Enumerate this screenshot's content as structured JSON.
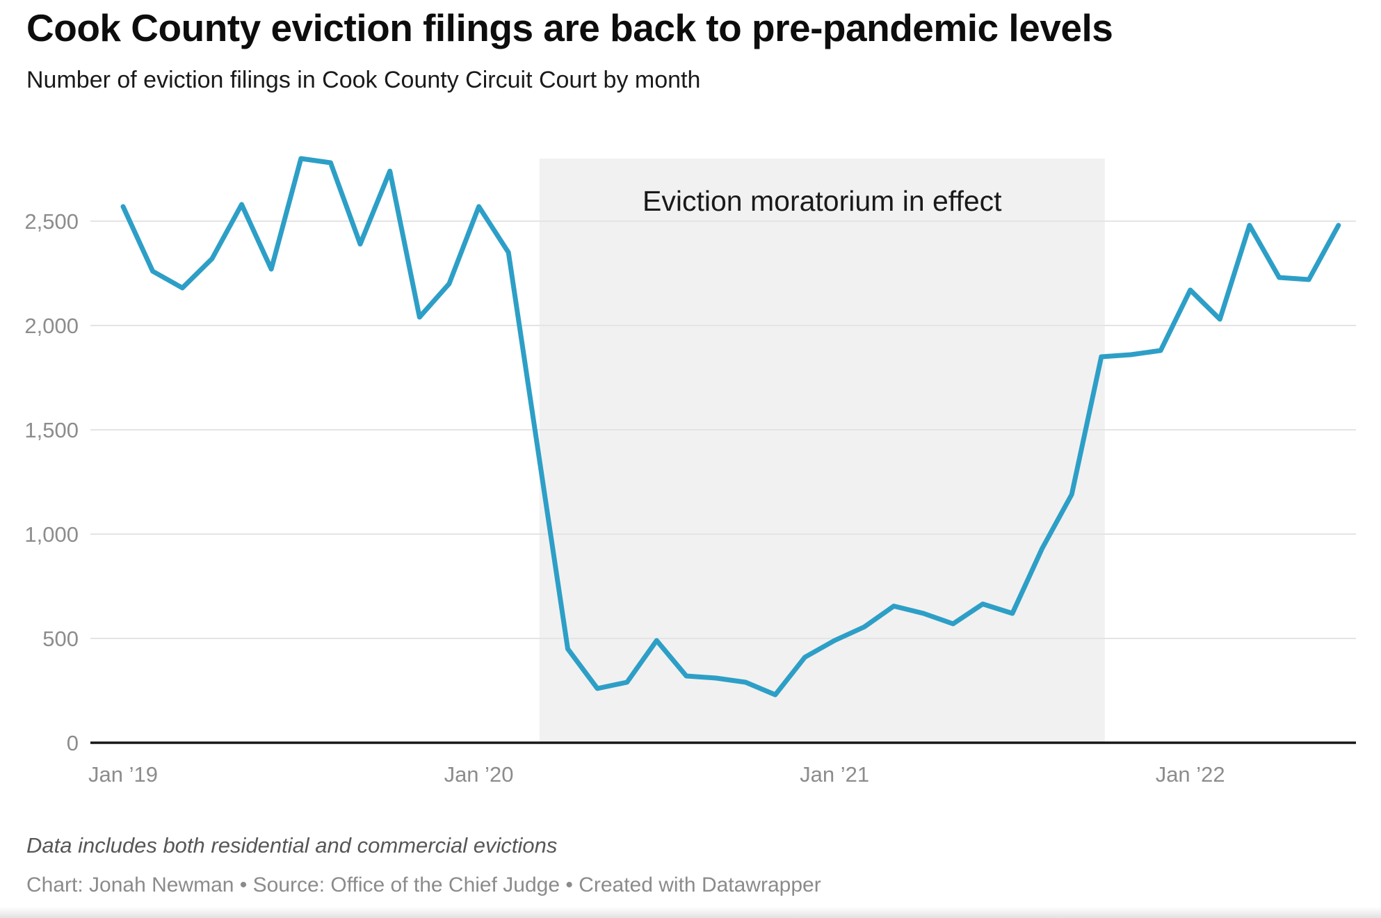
{
  "header": {
    "title": "Cook County eviction filings are back to pre-pandemic levels",
    "subtitle": "Number of eviction filings in Cook County Circuit Court by month"
  },
  "chart_data": {
    "type": "line",
    "title": "Cook County eviction filings are back to pre-pandemic levels",
    "subtitle": "Number of eviction filings in Cook County Circuit Court by month",
    "series_name": "Eviction filings per month",
    "x": [
      "Jan 2019",
      "Feb 2019",
      "Mar 2019",
      "Apr 2019",
      "May 2019",
      "Jun 2019",
      "Jul 2019",
      "Aug 2019",
      "Sep 2019",
      "Oct 2019",
      "Nov 2019",
      "Dec 2019",
      "Jan 2020",
      "Feb 2020",
      "Mar 2020",
      "Apr 2020",
      "May 2020",
      "Jun 2020",
      "Jul 2020",
      "Aug 2020",
      "Sep 2020",
      "Oct 2020",
      "Nov 2020",
      "Dec 2020",
      "Jan 2021",
      "Feb 2021",
      "Mar 2021",
      "Apr 2021",
      "May 2021",
      "Jun 2021",
      "Jul 2021",
      "Aug 2021",
      "Sep 2021",
      "Oct 2021",
      "Nov 2021",
      "Dec 2021",
      "Jan 2022",
      "Feb 2022",
      "Mar 2022",
      "Apr 2022",
      "May 2022",
      "Jun 2022"
    ],
    "values": [
      2570,
      2260,
      2180,
      2320,
      2580,
      2270,
      2800,
      2780,
      2390,
      2740,
      2040,
      2200,
      2570,
      2350,
      1400,
      450,
      260,
      290,
      490,
      320,
      310,
      290,
      230,
      410,
      490,
      555,
      655,
      620,
      570,
      665,
      620,
      930,
      1190,
      1850,
      1860,
      1880,
      2170,
      2030,
      2480,
      2230,
      2220,
      2480
    ],
    "ylim": [
      0,
      2900
    ],
    "yticks": [
      0,
      500,
      1000,
      1500,
      2000,
      2500
    ],
    "ytick_labels": [
      "0",
      "500",
      "1,000",
      "1,500",
      "2,000",
      "2,500"
    ],
    "xtick_indices": [
      0,
      12,
      24,
      36
    ],
    "xtick_labels": [
      "Jan ’19",
      "Jan ’20",
      "Jan ’21",
      "Jan ’22"
    ],
    "grid": "horizontal-only",
    "legend": "none",
    "band": {
      "start": "Mar 2020",
      "end": "Oct 2021",
      "color": "#f1f1f1"
    },
    "annotation": {
      "text": "Eviction moratorium in effect"
    },
    "line_color": "#2d9fc7",
    "axis_color": "#161616",
    "gridline_color": "#e4e4e4",
    "tick_label_color": "#8c8c8c"
  },
  "footer": {
    "note": "Data includes both residential and commercial evictions",
    "byline": "Chart: Jonah Newman • Source: Office of the Chief Judge • Created with Datawrapper"
  }
}
